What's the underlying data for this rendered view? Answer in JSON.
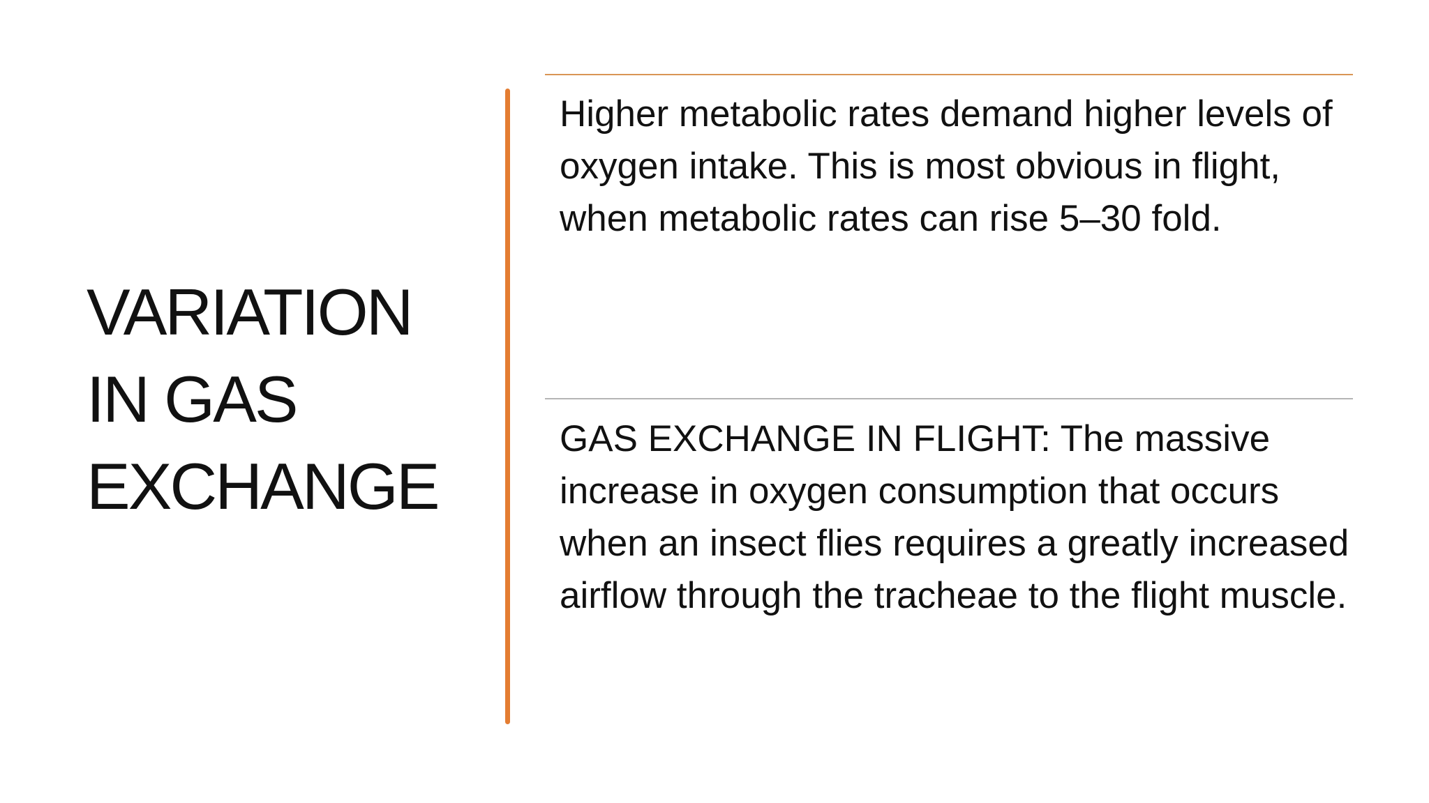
{
  "title": "VARIATION IN GAS EXCHANGE",
  "points": [
    "Higher metabolic rates demand higher levels of oxygen intake. This is most obvious in flight, when metabolic rates can rise 5–30 fold.",
    "GAS EXCHANGE IN FLIGHT: The massive increase in oxygen consumption that occurs when an insect flies requires a greatly increased airflow through the tracheae to the flight muscle."
  ]
}
